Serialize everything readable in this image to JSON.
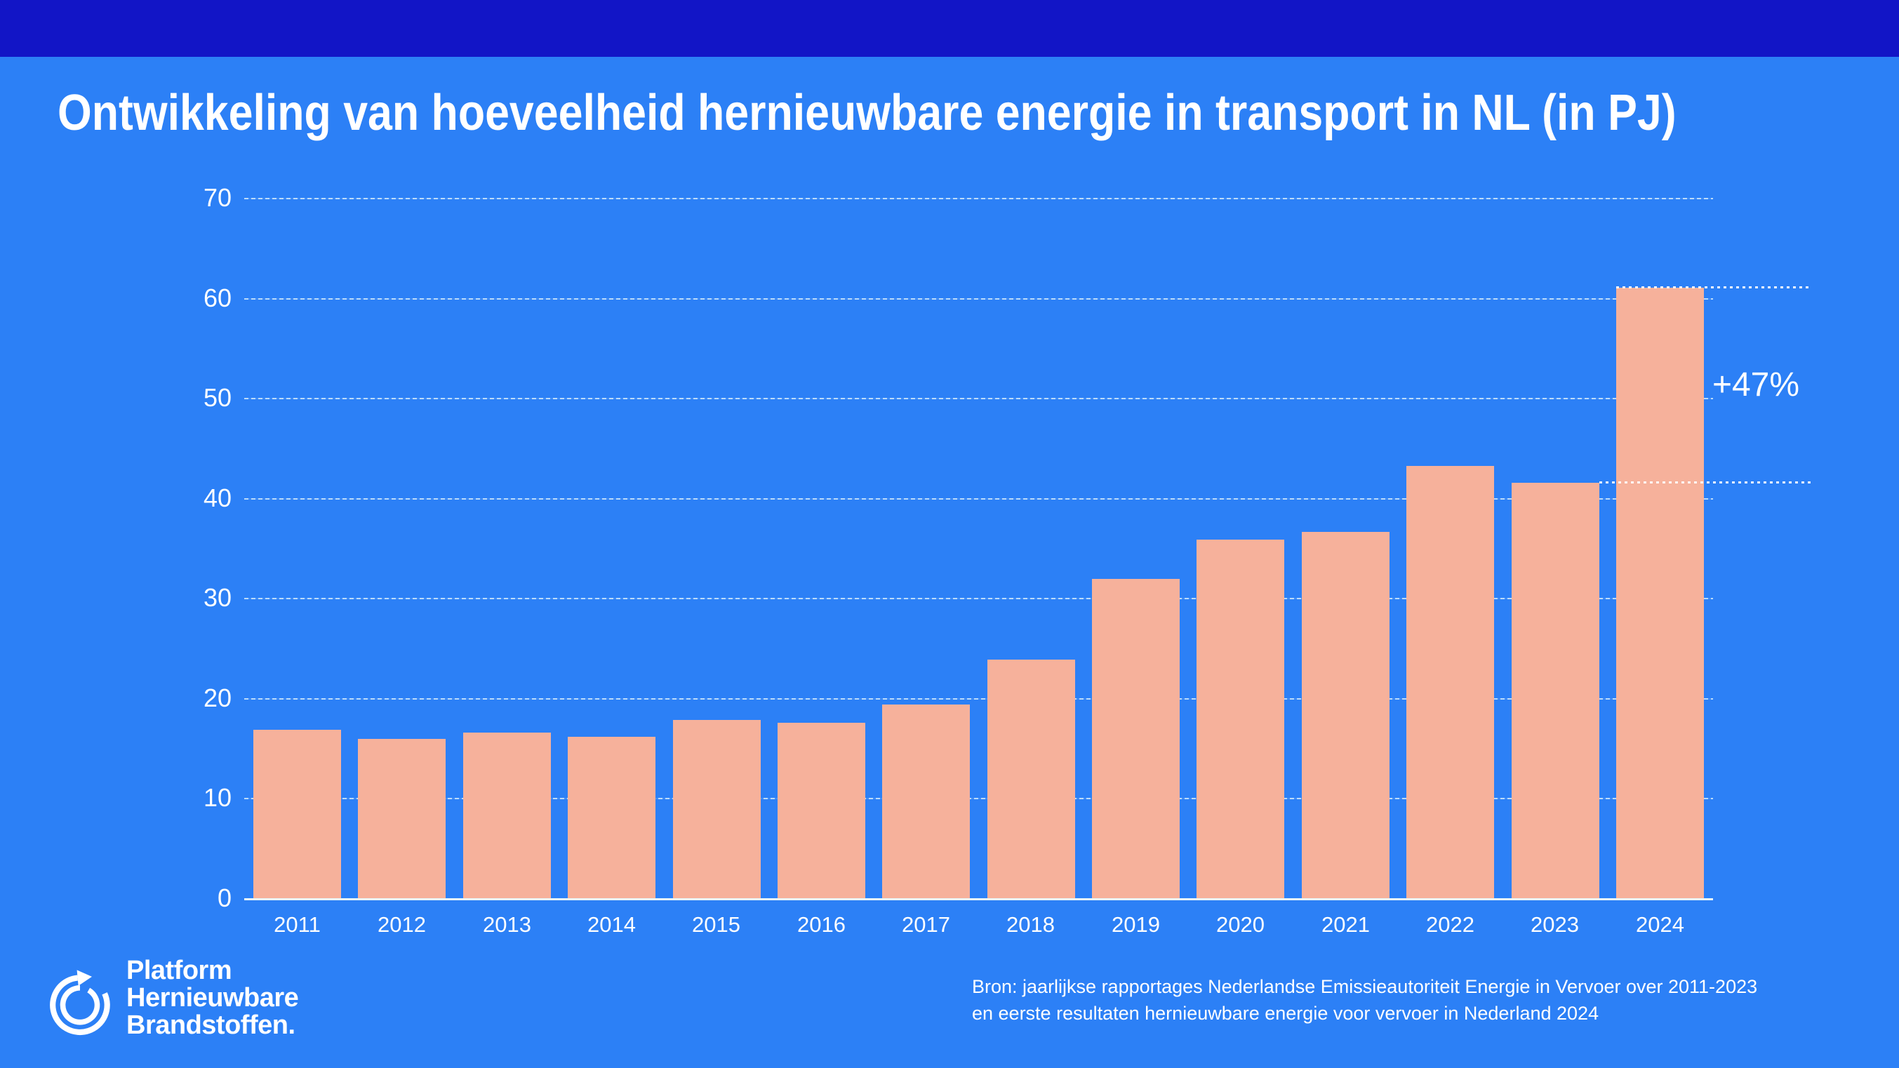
{
  "slide": {
    "title": "Ontwikkeling van hoeveelheid hernieuwbare energie in transport in NL (in PJ)"
  },
  "chart_data": {
    "type": "bar",
    "title": "Ontwikkeling van hoeveelheid hernieuwbare energie in transport in NL (in PJ)",
    "xlabel": "",
    "ylabel": "",
    "units": "PJ",
    "categories": [
      "2011",
      "2012",
      "2013",
      "2014",
      "2015",
      "2016",
      "2017",
      "2018",
      "2019",
      "2020",
      "2021",
      "2022",
      "2023",
      "2024"
    ],
    "values": [
      16.9,
      16.0,
      16.6,
      16.2,
      17.9,
      17.6,
      19.4,
      23.9,
      32.0,
      35.9,
      36.7,
      43.3,
      41.6,
      61.1
    ],
    "ylim": [
      0,
      70
    ],
    "yticks": [
      0,
      10,
      20,
      30,
      40,
      50,
      60,
      70
    ],
    "grid": "horizontal-dashed",
    "legend": "none",
    "bar_color": "#f6b19b",
    "annotation": {
      "label": "+47%",
      "from_year": "2023",
      "to_year": "2024"
    }
  },
  "footer": {
    "logo_icon": "circular-arrow-icon",
    "logo_lines": [
      "Platform",
      "Hernieuwbare",
      "Brandstoffen."
    ],
    "source_lines": [
      "Bron: jaarlijkse rapportages Nederlandse Emissieautoriteit Energie in Vervoer over 2011-2023",
      "en eerste resultaten hernieuwbare energie voor vervoer in Nederland 2024"
    ]
  },
  "colors": {
    "top_band": "#1215c6",
    "background": "#2c80f6",
    "bar": "#f6b19b",
    "text": "#ffffff",
    "axis_line": "#eaf7f7"
  }
}
